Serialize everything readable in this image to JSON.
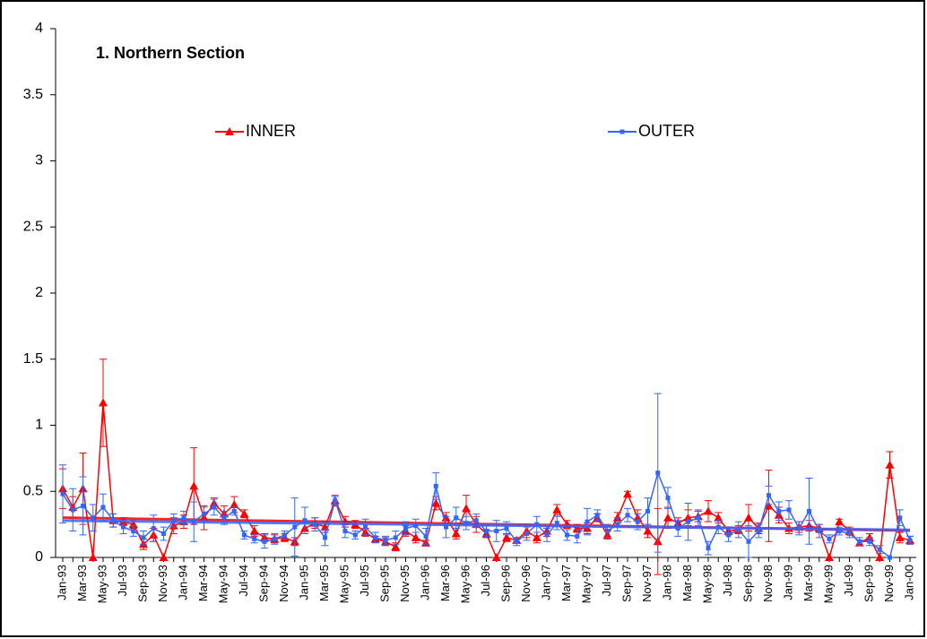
{
  "chart_data": {
    "type": "line",
    "title": "1. Northern Section",
    "categories": [
      "Jan-93",
      null,
      "Mar-93",
      null,
      "May-93",
      null,
      "Jul-93",
      null,
      "Sep-93",
      null,
      "Nov-93",
      null,
      "Jan-94",
      null,
      "Mar-94",
      null,
      "May-94",
      null,
      "Jul-94",
      null,
      "Sep-94",
      null,
      "Nov-94",
      null,
      "Jan-95",
      null,
      "Mar-95",
      null,
      "May-95",
      null,
      "Jul-95",
      null,
      "Sep-95",
      null,
      "Nov-95",
      null,
      "Jan-96",
      null,
      "Mar-96",
      null,
      "May-96",
      null,
      "Jul-96",
      null,
      "Sep-96",
      null,
      "Nov-96",
      null,
      "Jan-97",
      null,
      "Mar-97",
      null,
      "May-97",
      null,
      "Jul-97",
      null,
      "Sep-97",
      null,
      "Nov-97",
      null,
      "Jan-98",
      null,
      "Mar-98",
      null,
      "May-98",
      null,
      "Jul-98",
      null,
      "Sep-98",
      null,
      "Nov-98",
      null,
      "Jan-99",
      null,
      "Mar-99",
      null,
      "May-99",
      null,
      "Jul-99",
      null,
      "Sep-99",
      null,
      "Nov-99",
      null,
      "Jan-00"
    ],
    "series": [
      {
        "name": "INNER",
        "color": "#ff0000",
        "marker": "triangle",
        "values": [
          0.52,
          0.38,
          0.52,
          0.0,
          1.17,
          0.28,
          0.27,
          0.25,
          0.1,
          0.17,
          0.0,
          0.24,
          0.27,
          0.54,
          0.3,
          0.41,
          0.33,
          0.4,
          0.33,
          0.2,
          0.15,
          0.14,
          0.15,
          0.12,
          0.22,
          0.26,
          0.23,
          0.43,
          0.27,
          0.25,
          0.19,
          0.14,
          0.12,
          0.08,
          0.2,
          0.15,
          0.11,
          0.41,
          0.3,
          0.18,
          0.37,
          0.25,
          0.18,
          0.0,
          0.15,
          0.13,
          0.2,
          0.15,
          0.2,
          0.36,
          0.25,
          0.22,
          0.22,
          0.3,
          0.17,
          0.3,
          0.48,
          0.3,
          0.2,
          0.12,
          0.3,
          0.26,
          0.3,
          0.31,
          0.35,
          0.3,
          0.2,
          0.21,
          0.3,
          0.22,
          0.39,
          0.32,
          0.22,
          0.23,
          0.24,
          0.22,
          0.0,
          0.27,
          0.2,
          0.11,
          0.15,
          0.0,
          0.7,
          0.15,
          0.13
        ],
        "errors": [
          0.15,
          0.08,
          0.27,
          0.0,
          0.33,
          0.05,
          0.03,
          0.03,
          0.04,
          0.05,
          0.0,
          0.06,
          0.05,
          0.29,
          0.09,
          0.04,
          0.06,
          0.06,
          0.03,
          0.04,
          0.03,
          0.03,
          0.03,
          0.03,
          0.04,
          0.04,
          0.04,
          0.04,
          0.04,
          0.03,
          0.03,
          0.02,
          0.03,
          0.03,
          0.04,
          0.04,
          0.02,
          0.05,
          0.04,
          0.04,
          0.1,
          0.06,
          0.03,
          0.0,
          0.03,
          0.02,
          0.05,
          0.04,
          0.04,
          0.04,
          0.03,
          0.03,
          0.04,
          0.03,
          0.03,
          0.04,
          0.02,
          0.06,
          0.05,
          0.25,
          0.08,
          0.04,
          0.06,
          0.04,
          0.08,
          0.04,
          0.03,
          0.03,
          0.1,
          0.04,
          0.27,
          0.06,
          0.04,
          0.04,
          0.04,
          0.03,
          0.0,
          0.02,
          0.03,
          0.02,
          0.03,
          0.0,
          0.1,
          0.04,
          0.03
        ]
      },
      {
        "name": "OUTER",
        "color": "#3366ff",
        "marker": "square",
        "values": [
          0.48,
          0.36,
          0.39,
          0.3,
          0.38,
          0.28,
          0.23,
          0.2,
          0.15,
          0.22,
          0.18,
          0.28,
          0.3,
          0.27,
          0.33,
          0.38,
          0.3,
          0.35,
          0.17,
          0.14,
          0.12,
          0.14,
          0.17,
          0.23,
          0.28,
          0.25,
          0.15,
          0.43,
          0.2,
          0.17,
          0.23,
          0.15,
          0.13,
          0.15,
          0.22,
          0.24,
          0.16,
          0.54,
          0.23,
          0.3,
          0.26,
          0.28,
          0.2,
          0.2,
          0.22,
          0.12,
          0.18,
          0.25,
          0.17,
          0.26,
          0.17,
          0.16,
          0.27,
          0.32,
          0.2,
          0.25,
          0.32,
          0.27,
          0.35,
          0.64,
          0.45,
          0.22,
          0.27,
          0.3,
          0.07,
          0.23,
          0.17,
          0.21,
          0.12,
          0.2,
          0.47,
          0.35,
          0.36,
          0.22,
          0.35,
          0.2,
          0.14,
          0.2,
          0.18,
          0.12,
          0.12,
          0.06,
          0.0,
          0.3,
          0.13
        ],
        "errors": [
          0.22,
          0.16,
          0.22,
          0.1,
          0.1,
          0.05,
          0.05,
          0.04,
          0.05,
          0.1,
          0.05,
          0.05,
          0.05,
          0.15,
          0.05,
          0.06,
          0.05,
          0.03,
          0.03,
          0.03,
          0.05,
          0.04,
          0.03,
          0.22,
          0.1,
          0.05,
          0.06,
          0.03,
          0.05,
          0.03,
          0.06,
          0.04,
          0.03,
          0.05,
          0.05,
          0.05,
          0.06,
          0.1,
          0.08,
          0.08,
          0.05,
          0.05,
          0.04,
          0.08,
          0.05,
          0.03,
          0.05,
          0.06,
          0.05,
          0.05,
          0.04,
          0.05,
          0.1,
          0.04,
          0.05,
          0.05,
          0.05,
          0.06,
          0.1,
          0.6,
          0.08,
          0.06,
          0.14,
          0.06,
          0.05,
          0.05,
          0.05,
          0.06,
          0.12,
          0.05,
          0.07,
          0.07,
          0.07,
          0.05,
          0.25,
          0.05,
          0.03,
          0.03,
          0.03,
          0.03,
          0.03,
          0.03,
          0.0,
          0.06,
          0.03
        ]
      }
    ],
    "ylim": [
      0,
      4
    ],
    "yticks": [
      0,
      0.5,
      1,
      1.5,
      2,
      2.5,
      3,
      3.5,
      4
    ],
    "error_bars": true,
    "trendline": true,
    "grid": false
  }
}
